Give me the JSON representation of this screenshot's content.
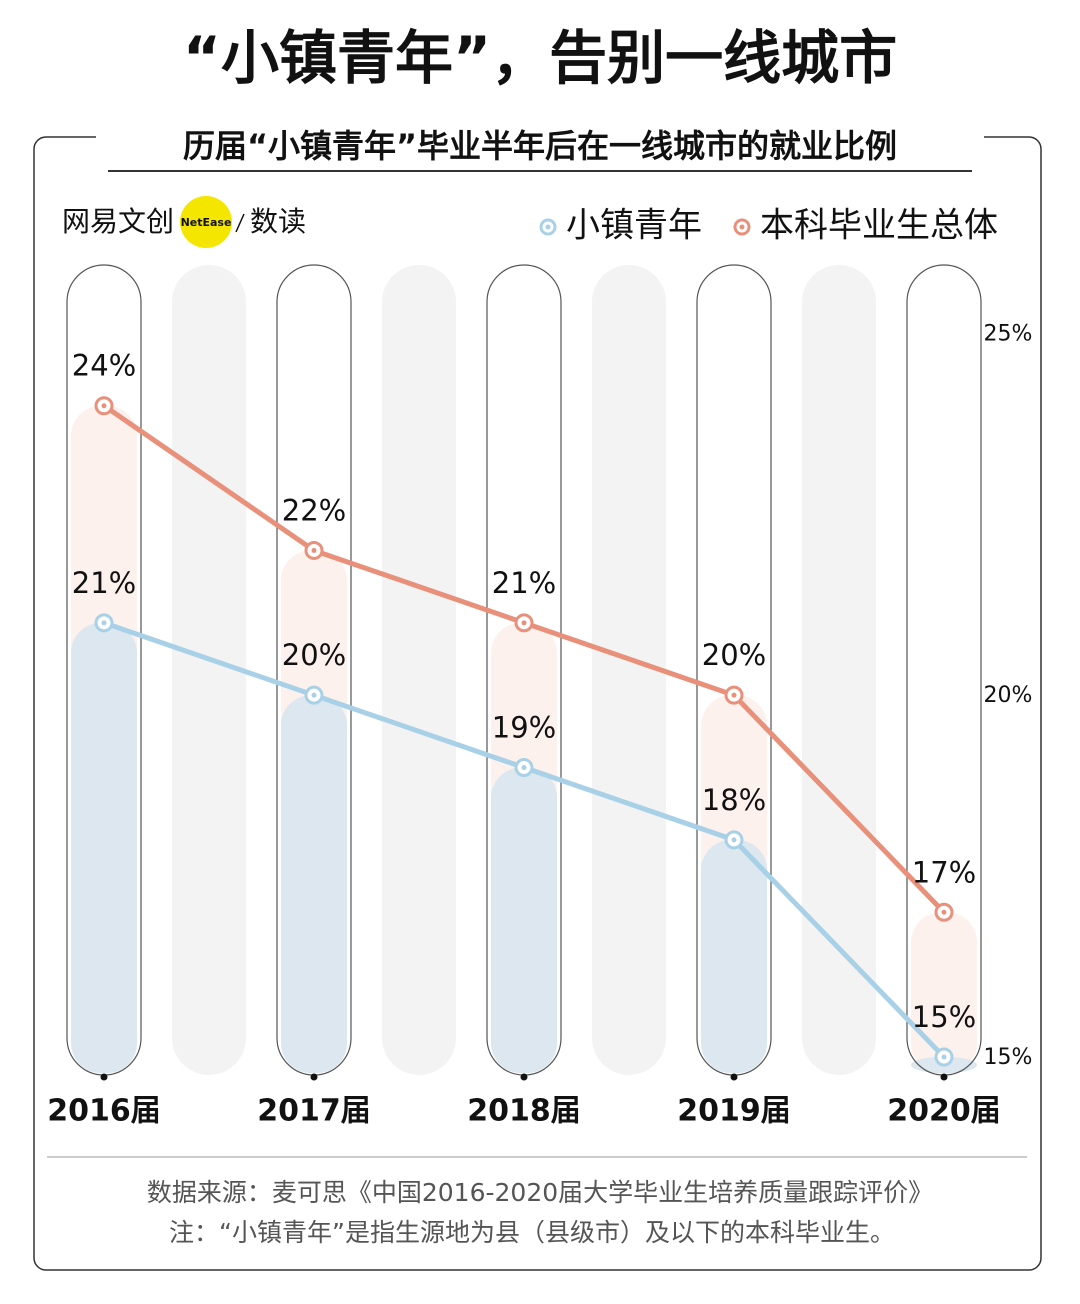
{
  "chart_data": {
    "type": "line",
    "title": "“小镇青年”，告别一线城市",
    "subtitle": "历届“小镇青年”毕业半年后在一线城市的就业比例",
    "brand": [
      "网易文创",
      "NetEase",
      "数读"
    ],
    "categories": [
      "2016届",
      "2017届",
      "2018届",
      "2019届",
      "2020届"
    ],
    "series": [
      {
        "name": "小镇青年",
        "color": "#a8d0e6",
        "values": [
          21,
          20,
          19,
          18,
          15
        ],
        "value_labels": [
          "21%",
          "20%",
          "19%",
          "18%",
          "15%"
        ]
      },
      {
        "name": "本科毕业生总体",
        "color": "#e8907a",
        "values": [
          24,
          22,
          21,
          20,
          17
        ],
        "value_labels": [
          "24%",
          "22%",
          "21%",
          "20%",
          "17%"
        ]
      }
    ],
    "ylim": [
      15,
      26
    ],
    "yticks": [
      {
        "value": 15,
        "label": "15%"
      },
      {
        "value": 20,
        "label": "20%"
      },
      {
        "value": 25,
        "label": "25%"
      }
    ],
    "legend": "top-right",
    "notes": [
      "数据来源：麦可思《中国2016-2020届大学毕业生培养质量跟踪评价》",
      "注：“小镇青年”是指生源地为县（县级市）及以下的本科毕业生。"
    ]
  }
}
